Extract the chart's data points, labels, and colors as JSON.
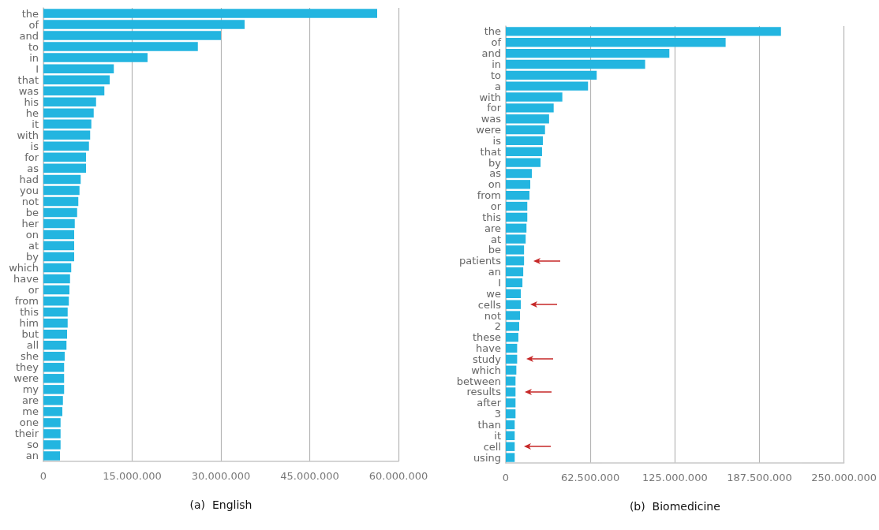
{
  "chart_data": [
    {
      "type": "bar",
      "orientation": "horizontal",
      "xlabel": "(a)  English",
      "grid": "x",
      "color": "#23b5e0",
      "categories": [
        "the",
        "of",
        "and",
        "to",
        "in",
        "I",
        "that",
        "was",
        "his",
        "he",
        "it",
        "with",
        "is",
        "for",
        "as",
        "had",
        "you",
        "not",
        "be",
        "her",
        "on",
        "at",
        "by",
        "which",
        "have",
        "or",
        "from",
        "this",
        "him",
        "but",
        "all",
        "she",
        "they",
        "were",
        "my",
        "are",
        "me",
        "one",
        "their",
        "so",
        "an"
      ],
      "values": [
        56400000,
        34000000,
        30000000,
        26100000,
        17600000,
        11900000,
        11200000,
        10300000,
        8900000,
        8500000,
        8100000,
        7900000,
        7700000,
        7200000,
        7200000,
        6300000,
        6100000,
        5900000,
        5700000,
        5300000,
        5200000,
        5200000,
        5200000,
        4700000,
        4500000,
        4400000,
        4300000,
        4100000,
        4100000,
        4000000,
        3900000,
        3600000,
        3500000,
        3500000,
        3500000,
        3300000,
        3200000,
        2900000,
        2900000,
        2900000,
        2800000
      ],
      "xlim": [
        0,
        60000000
      ],
      "xticks": [
        0,
        {
          "value": 15000000,
          "label": "15.000.000"
        },
        {
          "value": 30000000,
          "label": "30.000.000"
        },
        {
          "value": 45000000,
          "label": "45.000.000"
        },
        {
          "value": 60000000,
          "label": "60.000.000"
        }
      ]
    },
    {
      "type": "bar",
      "orientation": "horizontal",
      "xlabel": "(b)  Biomedicine",
      "grid": "x",
      "color": "#23b5e0",
      "categories": [
        "the",
        "of",
        "and",
        "in",
        "to",
        "a",
        "with",
        "for",
        "was",
        "were",
        "is",
        "that",
        "by",
        "as",
        "on",
        "from",
        "or",
        "this",
        "are",
        "at",
        "be",
        "patients",
        "an",
        "I",
        "we",
        "cells",
        "not",
        "2",
        "these",
        "have",
        "study",
        "which",
        "between",
        "results",
        "after",
        "3",
        "than",
        "it",
        "cell",
        "using"
      ],
      "values": [
        203400000,
        162500000,
        120900000,
        103000000,
        67200000,
        60800000,
        41800000,
        35400000,
        32000000,
        29000000,
        27400000,
        26800000,
        25700000,
        19300000,
        18100000,
        17500000,
        15900000,
        15900000,
        15300000,
        14700000,
        13500000,
        13500000,
        12900000,
        12300000,
        11100000,
        11100000,
        10500000,
        9900000,
        9300000,
        8400000,
        8400000,
        7800000,
        7200000,
        7200000,
        7200000,
        7200000,
        6600000,
        6600000,
        6600000,
        6600000
      ],
      "xlim": [
        0,
        250000000
      ],
      "xticks": [
        0,
        {
          "value": 62500000,
          "label": "62.500.000"
        },
        {
          "value": 125000000,
          "label": "125.000.000"
        },
        {
          "value": 187500000,
          "label": "187.500.000"
        },
        {
          "value": 250000000,
          "label": "250.000.000"
        }
      ]
    }
  ]
}
